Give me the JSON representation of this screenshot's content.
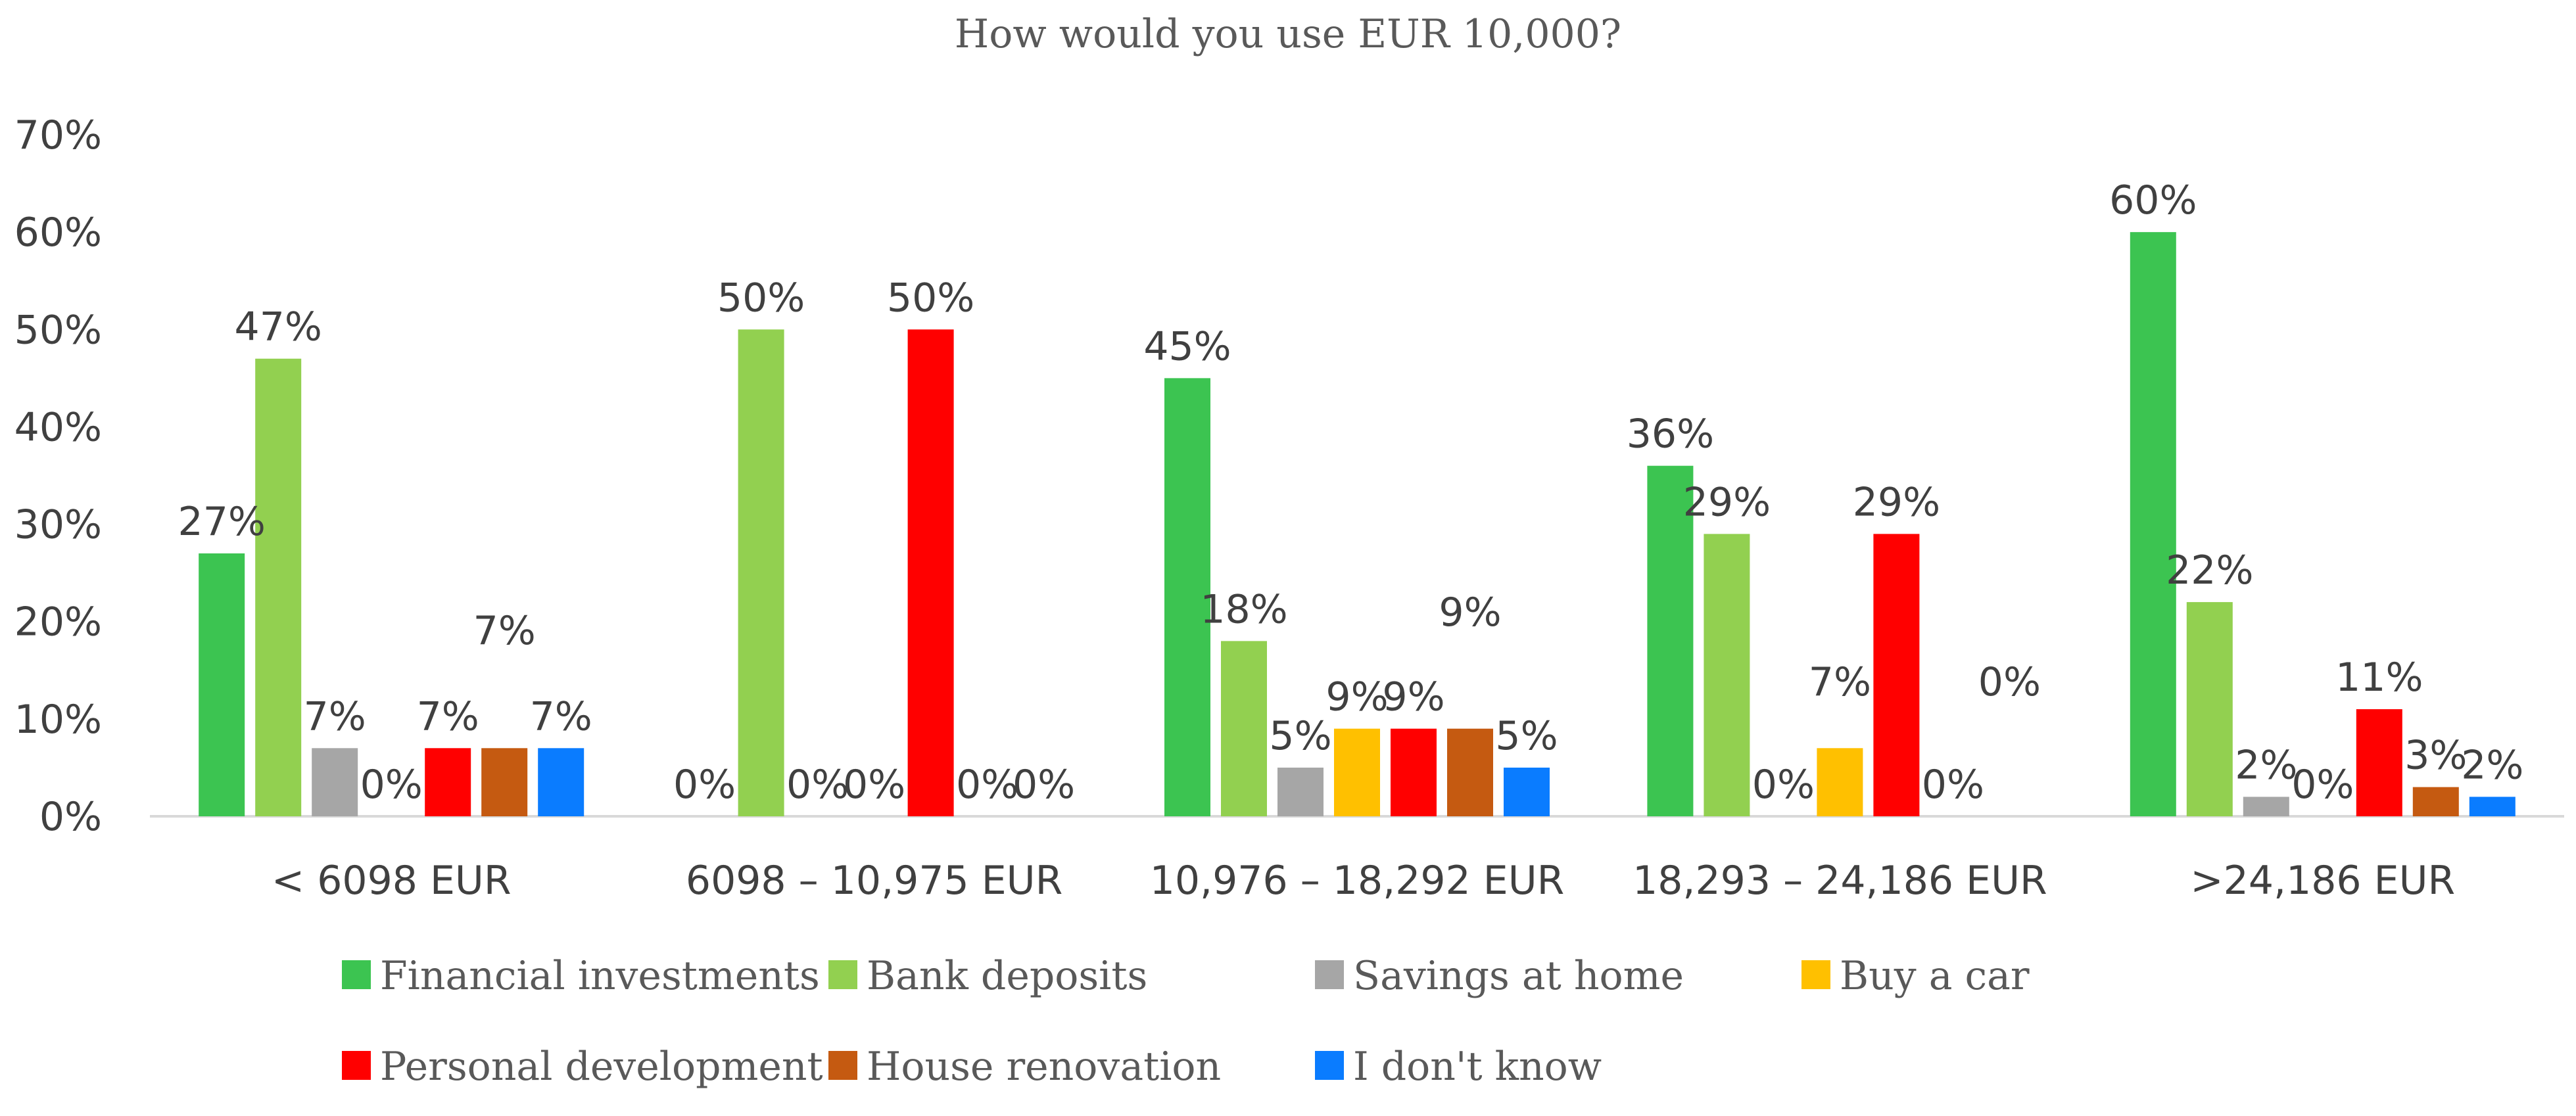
{
  "chart_data": {
    "type": "bar",
    "title": "How would you use EUR 10,000?",
    "xlabel": "",
    "ylabel": "",
    "ylim": [
      0,
      70
    ],
    "yticks": [
      "0%",
      "10%",
      "20%",
      "30%",
      "40%",
      "50%",
      "60%",
      "70%"
    ],
    "grid": false,
    "legend_position": "bottom",
    "categories": [
      "< 6098 EUR",
      "6098 – 10,975 EUR",
      "10,976 – 18,292 EUR",
      "18,293 – 24,186 EUR",
      ">24,186 EUR"
    ],
    "series": [
      {
        "name": "Financial investments",
        "color": "#3CC451",
        "values": [
          27,
          0,
          45,
          36,
          60
        ],
        "labels": [
          "27%",
          "0%",
          "45%",
          "36%",
          "60%"
        ]
      },
      {
        "name": "Bank deposits",
        "color": "#92D050",
        "values": [
          47,
          50,
          18,
          29,
          22
        ],
        "labels": [
          "47%",
          "50%",
          "18%",
          "29%",
          "22%"
        ]
      },
      {
        "name": "Savings at home",
        "color": "#A6A6A6",
        "values": [
          7,
          0,
          5,
          0,
          2
        ],
        "labels": [
          "7%",
          "0%",
          "5%",
          "0%",
          "2%"
        ]
      },
      {
        "name": "Buy a car",
        "color": "#FFC000",
        "values": [
          0,
          0,
          9,
          7,
          0
        ],
        "labels": [
          "0%",
          "0%",
          "9%",
          "7%",
          "0%"
        ]
      },
      {
        "name": "Personal development",
        "color": "#FF0000",
        "values": [
          7,
          50,
          9,
          29,
          11
        ],
        "labels": [
          "7%",
          "50%",
          "9%",
          "29%",
          "11%"
        ]
      },
      {
        "name": "House renovation",
        "color": "#C55A11",
        "values": [
          7,
          0,
          9,
          0,
          3
        ],
        "labels": [
          "7%",
          "0%",
          "9%",
          "0%",
          "3%"
        ]
      },
      {
        "name": "I don't know",
        "color": "#0A7CFF",
        "values": [
          7,
          0,
          5,
          0,
          2
        ],
        "labels": [
          "7%",
          "0%",
          "5%",
          "0%",
          "2%"
        ]
      }
    ]
  }
}
